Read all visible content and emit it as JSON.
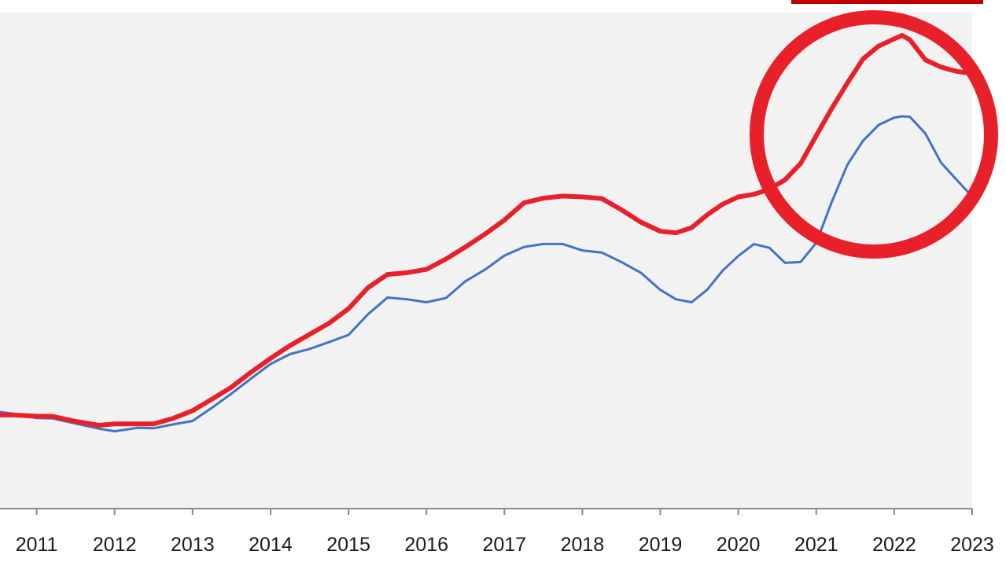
{
  "chart_data": {
    "type": "line",
    "title": "",
    "xlabel": "",
    "ylabel": "",
    "x_tick_labels": [
      "2011",
      "2012",
      "2013",
      "2014",
      "2015",
      "2016",
      "2017",
      "2018",
      "2019",
      "2020",
      "2021",
      "2022",
      "2023"
    ],
    "x_tick_values": [
      2011,
      2012,
      2013,
      2014,
      2015,
      2016,
      2017,
      2018,
      2019,
      2020,
      2021,
      2022,
      2023
    ],
    "xlim": [
      2010.53,
      2023.0
    ],
    "ylim": [
      0,
      100
    ],
    "y_axis_visible": false,
    "grid": false,
    "legend": "none",
    "plot_background": "#f2f2f2",
    "annotation": {
      "type": "circle",
      "color": "#e8202a",
      "encloses_x_range": [
        2020.7,
        2023.0
      ]
    },
    "legend_swatch_color": "#c00000",
    "series": [
      {
        "color": "#e8202a",
        "line_weight": "thick",
        "x": [
          2010.53,
          2010.7,
          2011.0,
          2011.2,
          2011.5,
          2011.8,
          2012.0,
          2012.3,
          2012.5,
          2012.75,
          2013.0,
          2013.25,
          2013.5,
          2013.75,
          2014.0,
          2014.25,
          2014.5,
          2014.75,
          2015.0,
          2015.25,
          2015.5,
          2015.75,
          2016.0,
          2016.25,
          2016.5,
          2016.75,
          2017.0,
          2017.25,
          2017.5,
          2017.75,
          2018.0,
          2018.25,
          2018.5,
          2018.75,
          2019.0,
          2019.2,
          2019.4,
          2019.6,
          2019.8,
          2020.0,
          2020.2,
          2020.4,
          2020.6,
          2020.8,
          2021.0,
          2021.2,
          2021.4,
          2021.6,
          2021.8,
          2022.0,
          2022.1,
          2022.2,
          2022.4,
          2022.6,
          2022.8,
          2023.0
        ],
        "y": [
          11.4,
          11.4,
          11.1,
          11.1,
          9.9,
          9.0,
          9.3,
          9.3,
          9.3,
          10.6,
          12.4,
          15.1,
          17.9,
          21.4,
          24.6,
          27.6,
          30.2,
          32.8,
          36.2,
          41.1,
          44.2,
          44.6,
          45.4,
          47.8,
          50.6,
          53.6,
          56.9,
          60.9,
          62.0,
          62.5,
          62.3,
          61.9,
          59.3,
          56.4,
          54.3,
          53.9,
          55.1,
          58.1,
          60.6,
          62.3,
          62.9,
          64.1,
          66.3,
          70.1,
          76.6,
          83.0,
          88.9,
          94.5,
          97.5,
          99.2,
          100.0,
          99.0,
          94.3,
          92.6,
          91.6,
          91.1
        ]
      },
      {
        "color": "#4472c4",
        "line_weight": "thin",
        "x": [
          2010.53,
          2010.7,
          2011.0,
          2011.2,
          2011.5,
          2011.8,
          2012.0,
          2012.3,
          2012.5,
          2012.75,
          2013.0,
          2013.25,
          2013.5,
          2013.75,
          2014.0,
          2014.25,
          2014.5,
          2014.75,
          2015.0,
          2015.25,
          2015.5,
          2015.75,
          2016.0,
          2016.25,
          2016.5,
          2016.75,
          2017.0,
          2017.25,
          2017.5,
          2017.75,
          2018.0,
          2018.25,
          2018.5,
          2018.75,
          2019.0,
          2019.2,
          2019.4,
          2019.6,
          2019.8,
          2020.0,
          2020.2,
          2020.4,
          2020.6,
          2020.8,
          2021.0,
          2021.2,
          2021.4,
          2021.6,
          2021.8,
          2022.0,
          2022.1,
          2022.2,
          2022.4,
          2022.6,
          2022.8,
          2023.0
        ],
        "y": [
          12.1,
          11.7,
          10.7,
          10.6,
          9.4,
          8.2,
          7.6,
          8.4,
          8.3,
          9.2,
          10.0,
          13.1,
          16.4,
          19.9,
          23.3,
          25.6,
          26.8,
          28.4,
          30.1,
          34.9,
          38.8,
          38.4,
          37.7,
          38.7,
          42.6,
          45.3,
          48.6,
          50.6,
          51.3,
          51.3,
          49.8,
          49.3,
          47.1,
          44.6,
          40.6,
          38.4,
          37.7,
          40.6,
          45.1,
          48.5,
          51.3,
          50.4,
          46.9,
          47.1,
          51.6,
          61.2,
          69.8,
          75.4,
          79.1,
          80.8,
          81.1,
          81.0,
          77.1,
          70.3,
          66.3,
          62.4
        ]
      }
    ]
  }
}
